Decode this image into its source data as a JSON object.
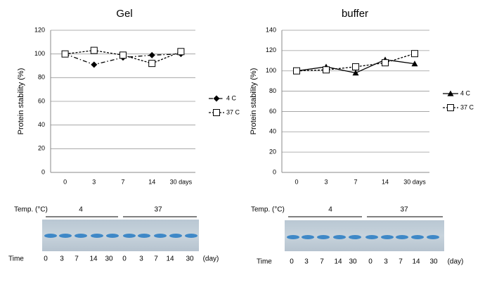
{
  "chart_data": [
    {
      "type": "line",
      "title": "Gel",
      "y_label": "Protein stability (%)",
      "categories": [
        "0",
        "3",
        "7",
        "14",
        "30 days"
      ],
      "ylim": [
        0,
        120
      ],
      "yticks": [
        0,
        20,
        40,
        60,
        80,
        100,
        120
      ],
      "grid": true,
      "series": [
        {
          "name": "4 C",
          "color": "#000000",
          "dash": "dashdot",
          "marker": "diamond",
          "values": [
            100,
            91,
            97,
            99,
            100
          ]
        },
        {
          "name": "37 C",
          "color": "#000000",
          "dash": "dashed",
          "marker": "open-square",
          "values": [
            100,
            103,
            99,
            92,
            102
          ]
        }
      ]
    },
    {
      "type": "line",
      "title": "buffer",
      "y_label": "Protein stability (%)",
      "categories": [
        "0",
        "3",
        "7",
        "14",
        "30 days"
      ],
      "ylim": [
        0,
        140
      ],
      "yticks": [
        0,
        20,
        40,
        60,
        80,
        100,
        120,
        140
      ],
      "grid": true,
      "series": [
        {
          "name": "4 C",
          "color": "#000000",
          "dash": "solid",
          "marker": "triangle",
          "values": [
            100,
            104,
            98,
            111,
            107
          ]
        },
        {
          "name": "37 C",
          "color": "#000000",
          "dash": "dashed",
          "marker": "open-square",
          "values": [
            100,
            101,
            104,
            108,
            117
          ]
        }
      ]
    }
  ],
  "gels": [
    {
      "temp_label": "Temp. (°C)",
      "groups": [
        "4",
        "37"
      ],
      "time_label": "Time",
      "lanes": [
        "0",
        "3",
        "7",
        "14",
        "30",
        "0",
        "3",
        "7",
        "14",
        "30"
      ],
      "unit": "(day)"
    },
    {
      "temp_label": "Temp. (°C)",
      "groups": [
        "4",
        "37"
      ],
      "time_label": "Time",
      "lanes": [
        "0",
        "3",
        "7",
        "14",
        "30",
        "0",
        "3",
        "7",
        "14",
        "30"
      ],
      "unit": "(day)"
    }
  ]
}
